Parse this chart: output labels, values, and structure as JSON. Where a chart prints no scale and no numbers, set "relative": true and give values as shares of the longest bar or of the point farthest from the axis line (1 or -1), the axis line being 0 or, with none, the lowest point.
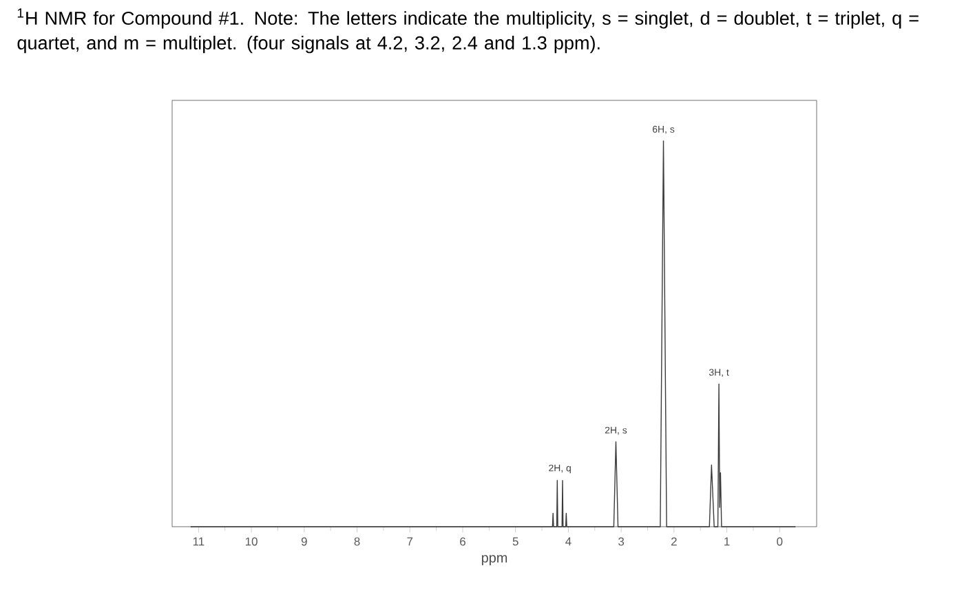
{
  "chart_data": {
    "type": "line",
    "relative": true,
    "title": "$^{1}$H NMR for Compound #1. Note: The letters indicate the multiplicity, s = singlet, d = doublet, t = triplet, q = quartet, and m = multiplet. (four signals at 4.2, 3.2, 2.4 and 1.3 ppm).",
    "xlabel": "ppm",
    "xlim": [
      11.5,
      -0.7
    ],
    "xticks": [
      11,
      10,
      9,
      8,
      7,
      6,
      5,
      4,
      3,
      2,
      1,
      0
    ],
    "series": [
      {
        "color": "#3a3a3a",
        "x": [
          11.15,
          4.35,
          4.3,
          4.29,
          4.28,
          4.22,
          4.21,
          4.2,
          4.12,
          4.11,
          4.1,
          4.05,
          4.04,
          4.03,
          3.14,
          3.1,
          3.06,
          2.26,
          2.2,
          2.14,
          1.33,
          1.29,
          1.24,
          1.17,
          1.15,
          1.135,
          1.12,
          1.1,
          -0.3
        ],
        "values": [
          0,
          0,
          0,
          0.035,
          0,
          0,
          0.12,
          0,
          0,
          0.12,
          0,
          0,
          0.035,
          0,
          0,
          0.22,
          0,
          0,
          1,
          0,
          0,
          0.16,
          0,
          0,
          0.37,
          0.05,
          0.14,
          0,
          0
        ]
      }
    ],
    "marker": "none",
    "line_style": "solid",
    "annotations": [
      {
        "text": "2H, q",
        "x": 4.16,
        "y": 0.12
      },
      {
        "text": "2H, s",
        "x": 3.1,
        "y": 0.22
      },
      {
        "text": "6H, s",
        "x": 2.2,
        "y": 1
      },
      {
        "text": "3H, t",
        "x": 1.15,
        "y": 0.37
      }
    ]
  }
}
